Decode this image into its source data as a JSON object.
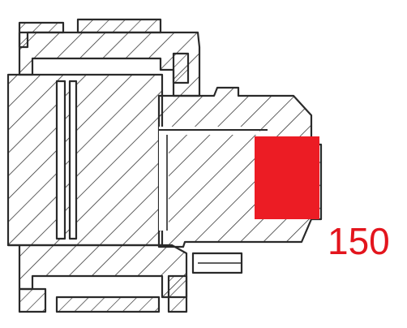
{
  "callout": {
    "label": "150",
    "color": "#e3151d"
  },
  "highlight": {
    "color": "#ec1c24"
  },
  "drawing": {
    "line_color": "#2a2a2a",
    "background": "#ffffff"
  }
}
